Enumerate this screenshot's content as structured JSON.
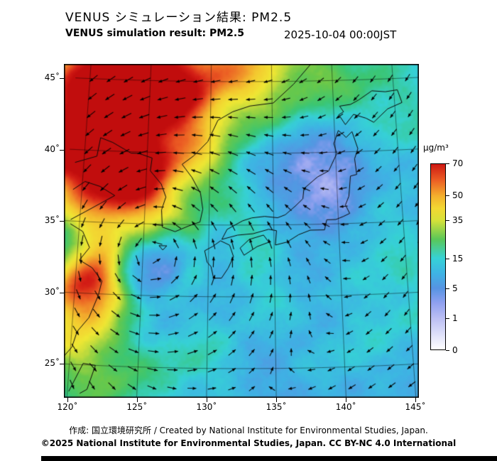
{
  "header": {
    "title_jp": "VENUS シミュレーション結果: PM2.5",
    "title_en": "VENUS simulation result: PM2.5",
    "datetime": "2025-10-04 00:00JST"
  },
  "map": {
    "lat_tick_labels": [
      "45˚",
      "40˚",
      "35˚",
      "30˚",
      "25˚"
    ],
    "lon_tick_labels": [
      "120˚",
      "125˚",
      "130˚",
      "135˚",
      "140˚",
      "145˚"
    ]
  },
  "colorbar": {
    "unit": "µg/m³",
    "tick_labels": [
      "70",
      "50",
      "35",
      "15",
      "5",
      "1",
      "0"
    ],
    "stops": [
      [
        0,
        "#ffffff"
      ],
      [
        1,
        "#b9bdf3"
      ],
      [
        3,
        "#8fa0f0"
      ],
      [
        5,
        "#5694e2"
      ],
      [
        10,
        "#3eb4e4"
      ],
      [
        15,
        "#36d2d6"
      ],
      [
        21,
        "#3ac674"
      ],
      [
        27,
        "#6ac84a"
      ],
      [
        33,
        "#c4dc3c"
      ],
      [
        38,
        "#f0e834"
      ],
      [
        46,
        "#f4cc30"
      ],
      [
        52,
        "#f2a22c"
      ],
      [
        60,
        "#ec5e24"
      ],
      [
        68,
        "#d41e16"
      ],
      [
        75,
        "#c00c0c"
      ]
    ]
  },
  "footer": {
    "credit": "作成: 国立環境研究所 / Created by National Institute for Environmental Studies, Japan.",
    "license": "©2025 National Institute for Environmental Studies, Japan. CC BY-NC 4.0 International"
  },
  "chart_data": {
    "type": "heatmap",
    "title": "VENUS simulation result: PM2.5",
    "datetime": "2025-10-04 00:00JST",
    "unit": "µg/m³",
    "lon_range": [
      119.3,
      146.9
    ],
    "lat_range": [
      23.0,
      46.3
    ],
    "lon_ticks": [
      120,
      125,
      130,
      135,
      140,
      145
    ],
    "lat_ticks": [
      45,
      40,
      35,
      30,
      25
    ],
    "colorbar_ticks": [
      70,
      50,
      35,
      15,
      5,
      1,
      0
    ],
    "base_value": 8,
    "plumes": [
      [
        122,
        43.5,
        4.3,
        58
      ],
      [
        120,
        41,
        3.0,
        45
      ],
      [
        123,
        39,
        2.6,
        40
      ],
      [
        127,
        45.5,
        3.0,
        30
      ],
      [
        132,
        46,
        3.0,
        22
      ],
      [
        137,
        45.8,
        2.6,
        14
      ],
      [
        143,
        45,
        2.8,
        10
      ],
      [
        120.5,
        30.3,
        1.7,
        55
      ],
      [
        120.3,
        27,
        2.2,
        20
      ],
      [
        122.5,
        23.8,
        2.3,
        14
      ],
      [
        121.5,
        34,
        1.6,
        14
      ],
      [
        125.6,
        33.2,
        2.4,
        -7.6
      ],
      [
        137,
        39.5,
        2.8,
        -5.5
      ],
      [
        129.5,
        39,
        2.6,
        9
      ],
      [
        124.5,
        36,
        2.0,
        13
      ],
      [
        128.5,
        25.5,
        2.4,
        9
      ],
      [
        134,
        30.5,
        2.2,
        6
      ],
      [
        143.5,
        33,
        2.6,
        7
      ],
      [
        145.5,
        28.5,
        2.2,
        6
      ],
      [
        140,
        26,
        2.2,
        5
      ],
      [
        133.5,
        34.8,
        1.6,
        7
      ],
      [
        141,
        40,
        2.0,
        -3
      ],
      [
        146,
        41,
        2.4,
        6
      ],
      [
        131.5,
        41.5,
        2.2,
        -3
      ],
      [
        139.5,
        35.8,
        1.3,
        -4
      ]
    ],
    "cyclone": {
      "lon": 125.5,
      "lat": 33,
      "ring_radius_deg": 3.3,
      "ring_width_deg": 0.85,
      "ring_amp": 6
    },
    "wind": {
      "background_u": -0.45,
      "background_v": -0.75,
      "vortex": {
        "lon": 125.5,
        "lat": 33,
        "strength": 1.9,
        "radius_deg": 3.5,
        "broad_strength": 0.5,
        "broad_radius_deg": 7.0
      }
    }
  }
}
